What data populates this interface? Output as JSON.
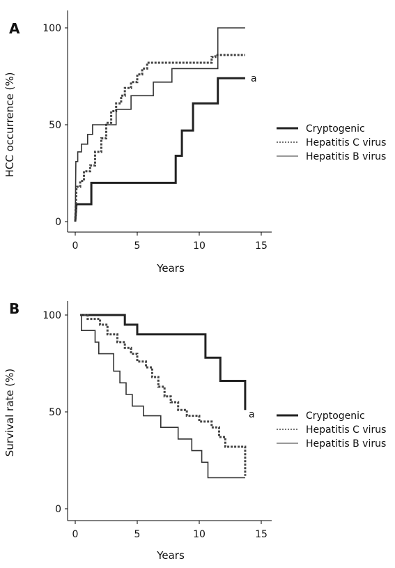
{
  "chart_data": [
    {
      "panel": "A",
      "type": "line",
      "step": true,
      "xlabel": "Years",
      "ylabel": "HCC occurrence (%)",
      "xlim": [
        0,
        15
      ],
      "ylim": [
        0,
        100
      ],
      "xticks": [
        "0",
        "5",
        "10",
        "15"
      ],
      "yticks": [
        "0",
        "50",
        "100"
      ],
      "grid": false,
      "legend_position": "right",
      "annotation": "a",
      "series": [
        {
          "name": "Cryptogenic",
          "style": "solid-thick",
          "points": [
            [
              0,
              0
            ],
            [
              0.1,
              9
            ],
            [
              1.3,
              9
            ],
            [
              1.3,
              20
            ],
            [
              8.1,
              20
            ],
            [
              8.1,
              34
            ],
            [
              8.6,
              34
            ],
            [
              8.6,
              47
            ],
            [
              9.5,
              47
            ],
            [
              9.5,
              61
            ],
            [
              11.5,
              61
            ],
            [
              11.5,
              74
            ],
            [
              13.7,
              74
            ]
          ]
        },
        {
          "name": "Hepatitis C virus",
          "style": "dotted",
          "points": [
            [
              0,
              0
            ],
            [
              0.1,
              18
            ],
            [
              0.4,
              18
            ],
            [
              0.4,
              21
            ],
            [
              0.7,
              21
            ],
            [
              0.7,
              26
            ],
            [
              1.2,
              26
            ],
            [
              1.2,
              29
            ],
            [
              1.6,
              29
            ],
            [
              1.6,
              36
            ],
            [
              2.1,
              36
            ],
            [
              2.1,
              43
            ],
            [
              2.5,
              43
            ],
            [
              2.5,
              51
            ],
            [
              2.9,
              51
            ],
            [
              2.9,
              57
            ],
            [
              3.3,
              57
            ],
            [
              3.3,
              61
            ],
            [
              3.7,
              61
            ],
            [
              3.7,
              65
            ],
            [
              4.0,
              65
            ],
            [
              4.0,
              69
            ],
            [
              4.5,
              69
            ],
            [
              4.5,
              72
            ],
            [
              5.0,
              72
            ],
            [
              5.0,
              76
            ],
            [
              5.4,
              76
            ],
            [
              5.4,
              79
            ],
            [
              5.8,
              79
            ],
            [
              5.8,
              82
            ],
            [
              11.0,
              82
            ],
            [
              11.0,
              85
            ],
            [
              11.3,
              85
            ],
            [
              11.3,
              86
            ],
            [
              13.7,
              86
            ]
          ]
        },
        {
          "name": "Hepatitis B virus",
          "style": "solid-thin",
          "points": [
            [
              0,
              0
            ],
            [
              0.05,
              31
            ],
            [
              0.2,
              31
            ],
            [
              0.2,
              36
            ],
            [
              0.5,
              36
            ],
            [
              0.5,
              40
            ],
            [
              1.0,
              40
            ],
            [
              1.0,
              45
            ],
            [
              1.4,
              45
            ],
            [
              1.4,
              50
            ],
            [
              3.3,
              50
            ],
            [
              3.3,
              58
            ],
            [
              4.5,
              58
            ],
            [
              4.5,
              65
            ],
            [
              6.3,
              65
            ],
            [
              6.3,
              72
            ],
            [
              7.8,
              72
            ],
            [
              7.8,
              79
            ],
            [
              11.5,
              79
            ],
            [
              11.5,
              100
            ],
            [
              13.7,
              100
            ]
          ]
        }
      ]
    },
    {
      "panel": "B",
      "type": "line",
      "step": true,
      "xlabel": "Years",
      "ylabel": "Survival rate (%)",
      "xlim": [
        0,
        15
      ],
      "ylim": [
        0,
        100
      ],
      "xticks": [
        "0",
        "5",
        "10",
        "15"
      ],
      "yticks": [
        "0",
        "50",
        "100"
      ],
      "grid": false,
      "legend_position": "right",
      "annotation": "a",
      "series": [
        {
          "name": "Cryptogenic",
          "style": "solid-thick",
          "points": [
            [
              0.4,
              100
            ],
            [
              4.0,
              100
            ],
            [
              4.0,
              95
            ],
            [
              5.0,
              95
            ],
            [
              5.0,
              90
            ],
            [
              10.5,
              90
            ],
            [
              10.5,
              78
            ],
            [
              11.7,
              78
            ],
            [
              11.7,
              66
            ],
            [
              13.7,
              66
            ],
            [
              13.7,
              51
            ]
          ]
        },
        {
          "name": "Hepatitis C virus",
          "style": "dotted",
          "points": [
            [
              0.4,
              100
            ],
            [
              1.0,
              100
            ],
            [
              1.0,
              98
            ],
            [
              2.0,
              98
            ],
            [
              2.0,
              95
            ],
            [
              2.6,
              95
            ],
            [
              2.6,
              90
            ],
            [
              3.4,
              90
            ],
            [
              3.4,
              86
            ],
            [
              4.0,
              86
            ],
            [
              4.0,
              83
            ],
            [
              4.5,
              83
            ],
            [
              4.5,
              80
            ],
            [
              5.0,
              80
            ],
            [
              5.0,
              76
            ],
            [
              5.7,
              76
            ],
            [
              5.7,
              73
            ],
            [
              6.2,
              73
            ],
            [
              6.2,
              68
            ],
            [
              6.7,
              68
            ],
            [
              6.7,
              63
            ],
            [
              7.2,
              63
            ],
            [
              7.2,
              58
            ],
            [
              7.7,
              58
            ],
            [
              7.7,
              55
            ],
            [
              8.3,
              55
            ],
            [
              8.3,
              51
            ],
            [
              9.0,
              51
            ],
            [
              9.0,
              48
            ],
            [
              10.0,
              48
            ],
            [
              10.0,
              45
            ],
            [
              11.0,
              45
            ],
            [
              11.0,
              42
            ],
            [
              11.6,
              42
            ],
            [
              11.6,
              37
            ],
            [
              12.1,
              37
            ],
            [
              12.1,
              32
            ],
            [
              13.7,
              32
            ],
            [
              13.7,
              17
            ]
          ]
        },
        {
          "name": "Hepatitis B virus",
          "style": "solid-thin",
          "points": [
            [
              0.4,
              100
            ],
            [
              0.5,
              100
            ],
            [
              0.5,
              92
            ],
            [
              1.6,
              92
            ],
            [
              1.6,
              86
            ],
            [
              1.9,
              86
            ],
            [
              1.9,
              80
            ],
            [
              3.1,
              80
            ],
            [
              3.1,
              71
            ],
            [
              3.6,
              71
            ],
            [
              3.6,
              65
            ],
            [
              4.1,
              65
            ],
            [
              4.1,
              59
            ],
            [
              4.6,
              59
            ],
            [
              4.6,
              53
            ],
            [
              5.5,
              53
            ],
            [
              5.5,
              48
            ],
            [
              6.9,
              48
            ],
            [
              6.9,
              42
            ],
            [
              8.3,
              42
            ],
            [
              8.3,
              36
            ],
            [
              9.4,
              36
            ],
            [
              9.4,
              30
            ],
            [
              10.2,
              30
            ],
            [
              10.2,
              24
            ],
            [
              10.7,
              24
            ],
            [
              10.7,
              16
            ],
            [
              13.7,
              16
            ]
          ]
        }
      ]
    }
  ]
}
